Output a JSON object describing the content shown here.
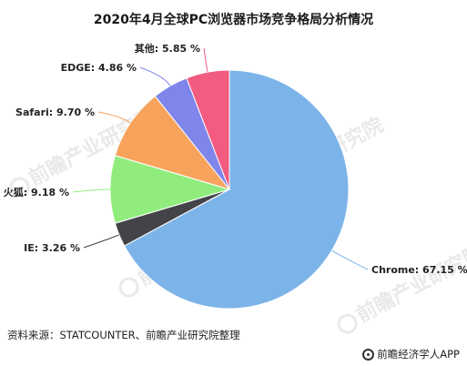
{
  "title": "2020年4月全球PC浏览器市场竞争格局分析情况",
  "source": "资料来源：STATCOUNTER、前瞻产业研究院整理",
  "footer_brand": "前瞻经济学人APP",
  "watermark_text": "前瞻产业研究院",
  "chart_data": {
    "type": "pie",
    "title": "2020年4月全球PC浏览器市场竞争格局分析情况",
    "unit": "%",
    "start_angle_deg": 0,
    "direction": "clockwise",
    "slices": [
      {
        "label": "Chrome",
        "value": 67.15,
        "display": "Chrome: 67.15 %",
        "color": "#7cb4ea"
      },
      {
        "label": "IE",
        "value": 3.26,
        "display": "IE: 3.26 %",
        "color": "#434348"
      },
      {
        "label": "火狐",
        "value": 9.18,
        "display": "火狐: 9.18 %",
        "color": "#90ed7d"
      },
      {
        "label": "Safari",
        "value": 9.7,
        "display": "Safari: 9.70 %",
        "color": "#f7a35c"
      },
      {
        "label": "EDGE",
        "value": 4.86,
        "display": "EDGE: 4.86 %",
        "color": "#8085e9"
      },
      {
        "label": "其他",
        "value": 5.85,
        "display": "其他: 5.85 %",
        "color": "#f15c80"
      }
    ]
  }
}
